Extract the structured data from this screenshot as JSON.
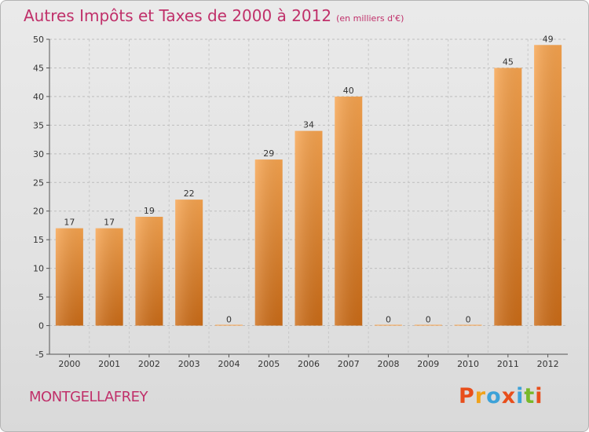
{
  "title": "Autres Impôts et Taxes de 2000 à 2012",
  "unit": "(en milliers d'€)",
  "commune": "MONTGELLAFREY",
  "logo": {
    "text": "Proxiti",
    "colors": [
      "#e84e1b",
      "#f0a21a",
      "#3da2d8",
      "#e84e1b",
      "#3da2d8",
      "#78b829",
      "#e84e1b"
    ]
  },
  "colors": {
    "bar_light": "#f7a44f",
    "bar_dark": "#cc6c17",
    "title": "#c0306a"
  },
  "chart_data": {
    "type": "bar",
    "title": "Autres Impôts et Taxes de 2000 à 2012",
    "categories": [
      "2000",
      "2001",
      "2002",
      "2003",
      "2004",
      "2005",
      "2006",
      "2007",
      "2008",
      "2009",
      "2010",
      "2011",
      "2012"
    ],
    "values": [
      17,
      17,
      19,
      22,
      0,
      29,
      34,
      40,
      0,
      0,
      0,
      45,
      49
    ],
    "ylim": [
      -5,
      50
    ],
    "yticks": [
      -5,
      0,
      5,
      10,
      15,
      20,
      25,
      30,
      35,
      40,
      45,
      50
    ],
    "grid": "dashed horizontal",
    "legend": "none"
  }
}
